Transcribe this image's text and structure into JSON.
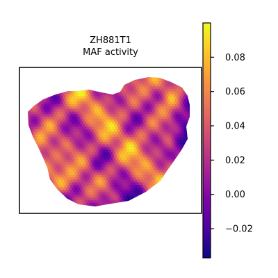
{
  "chart_data": {
    "type": "heatmap",
    "subtype": "spatial-spot-map",
    "title": [
      "ZH881T1",
      "MAF activity"
    ],
    "colormap": "plasma",
    "colorbar": {
      "range": [
        -0.037,
        0.1
      ],
      "ticks": [
        -0.02,
        0.0,
        0.02,
        0.04,
        0.06,
        0.08
      ],
      "tick_labels": [
        "−0.02",
        "0.00",
        "0.02",
        "0.04",
        "0.06",
        "0.08"
      ]
    },
    "xlabel": "",
    "ylabel": "",
    "grid": false,
    "legend": "colorbar-right"
  }
}
